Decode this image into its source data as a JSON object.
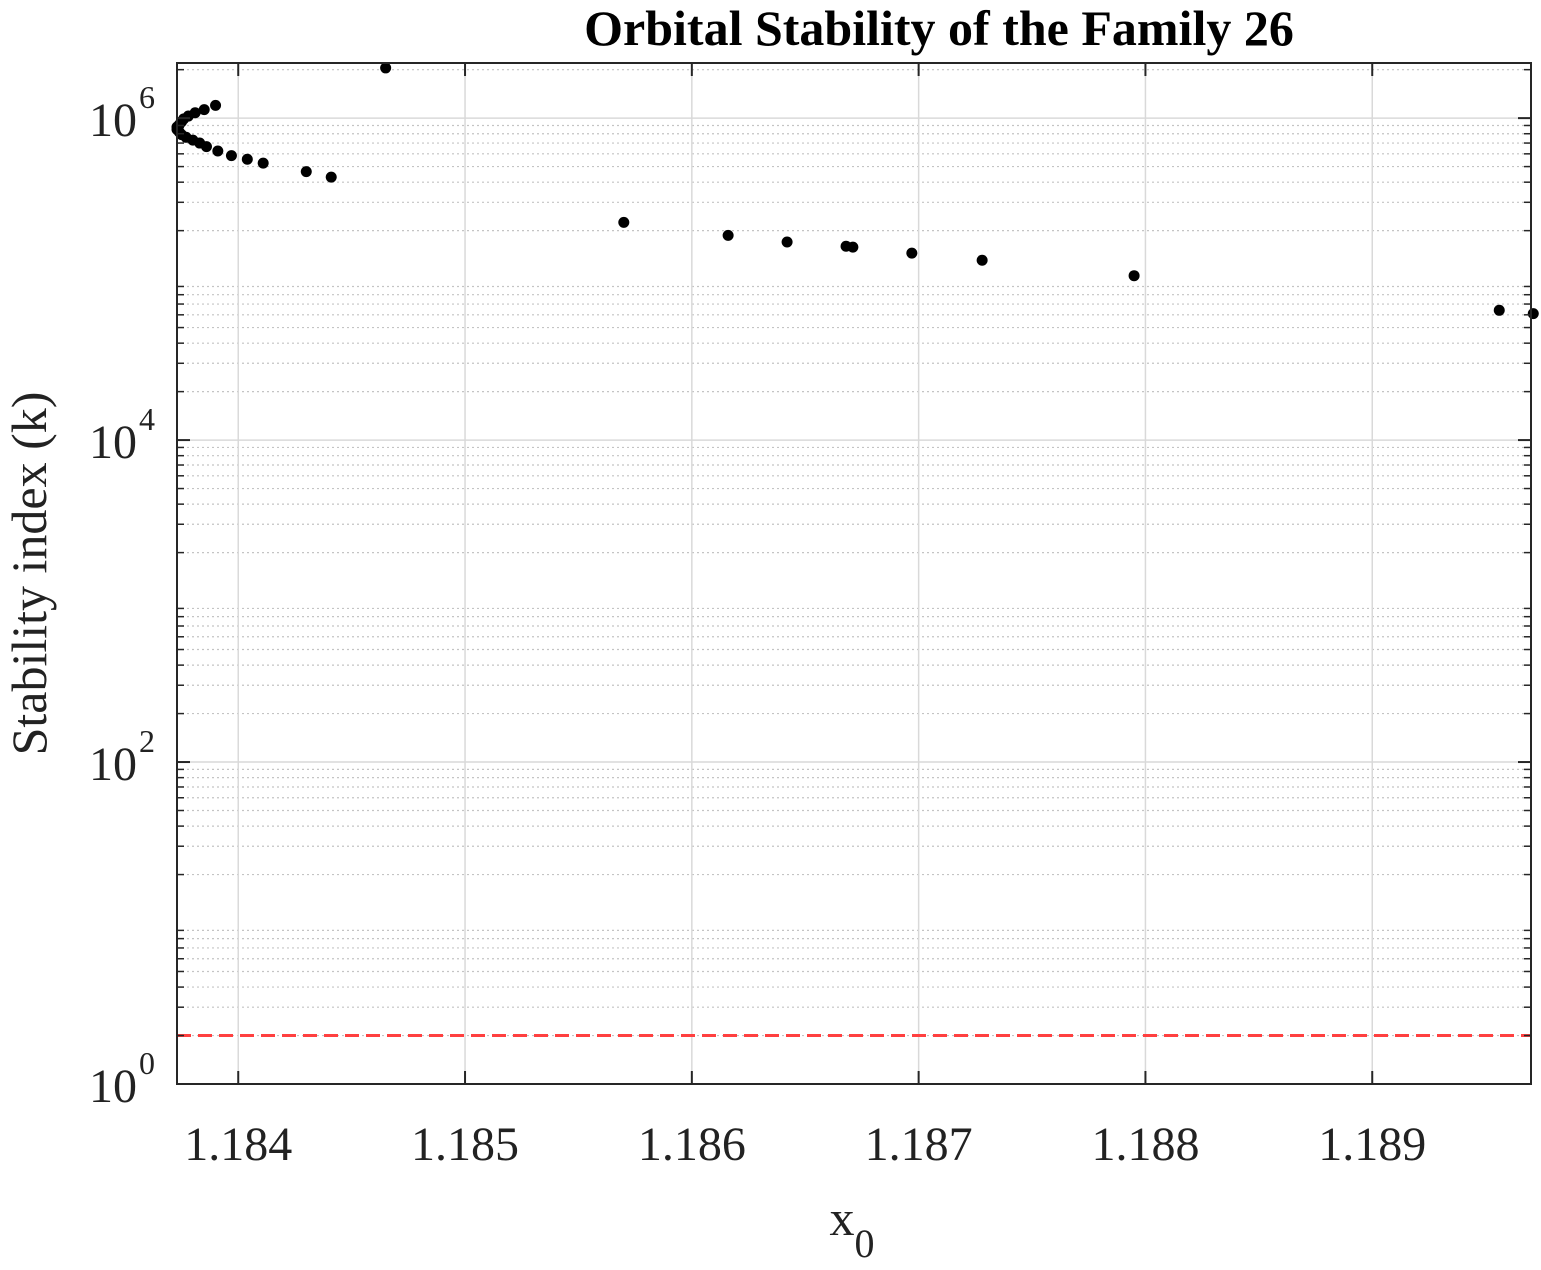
{
  "chart_data": {
    "type": "scatter",
    "title": "Orbital Stability of the Family 26",
    "xlabel": "x",
    "xlabel_subscript": "0",
    "ylabel": "Stability index (k)",
    "xlim": [
      1.18373,
      1.1897
    ],
    "ylim": [
      1,
      2200000
    ],
    "yscale": "log",
    "grid": true,
    "x_ticks": [
      1.184,
      1.185,
      1.186,
      1.187,
      1.188,
      1.189
    ],
    "x_tick_labels": [
      "1.184",
      "1.185",
      "1.186",
      "1.187",
      "1.188",
      "1.189"
    ],
    "y_ticks": [
      1,
      100,
      10000,
      1000000
    ],
    "y_tick_base": "10",
    "y_tick_exponents": [
      "0",
      "2",
      "4",
      "6"
    ],
    "threshold_line": {
      "y": 2,
      "color": "#ff4040",
      "style": "dashed"
    },
    "marker_color": "#000000",
    "x": [
      1.18465,
      1.1839,
      1.18385,
      1.18381,
      1.18378,
      1.18376,
      1.18375,
      1.18374,
      1.18373,
      1.18373,
      1.18374,
      1.18375,
      1.18377,
      1.1838,
      1.18383,
      1.18386,
      1.18391,
      1.18397,
      1.18404,
      1.18411,
      1.1843,
      1.18441,
      1.1857,
      1.18616,
      1.18642,
      1.18668,
      1.18671,
      1.18697,
      1.18728,
      1.18795,
      1.18956,
      1.18971
    ],
    "y": [
      2050000,
      1200000,
      1130000,
      1080000,
      1030000,
      990000,
      950000,
      910000,
      880000,
      850000,
      820000,
      790000,
      760000,
      730000,
      700000,
      665000,
      625000,
      585000,
      555000,
      525000,
      465000,
      430000,
      225000,
      187000,
      170000,
      160000,
      158000,
      145000,
      131000,
      105000,
      64000,
      61000
    ]
  }
}
